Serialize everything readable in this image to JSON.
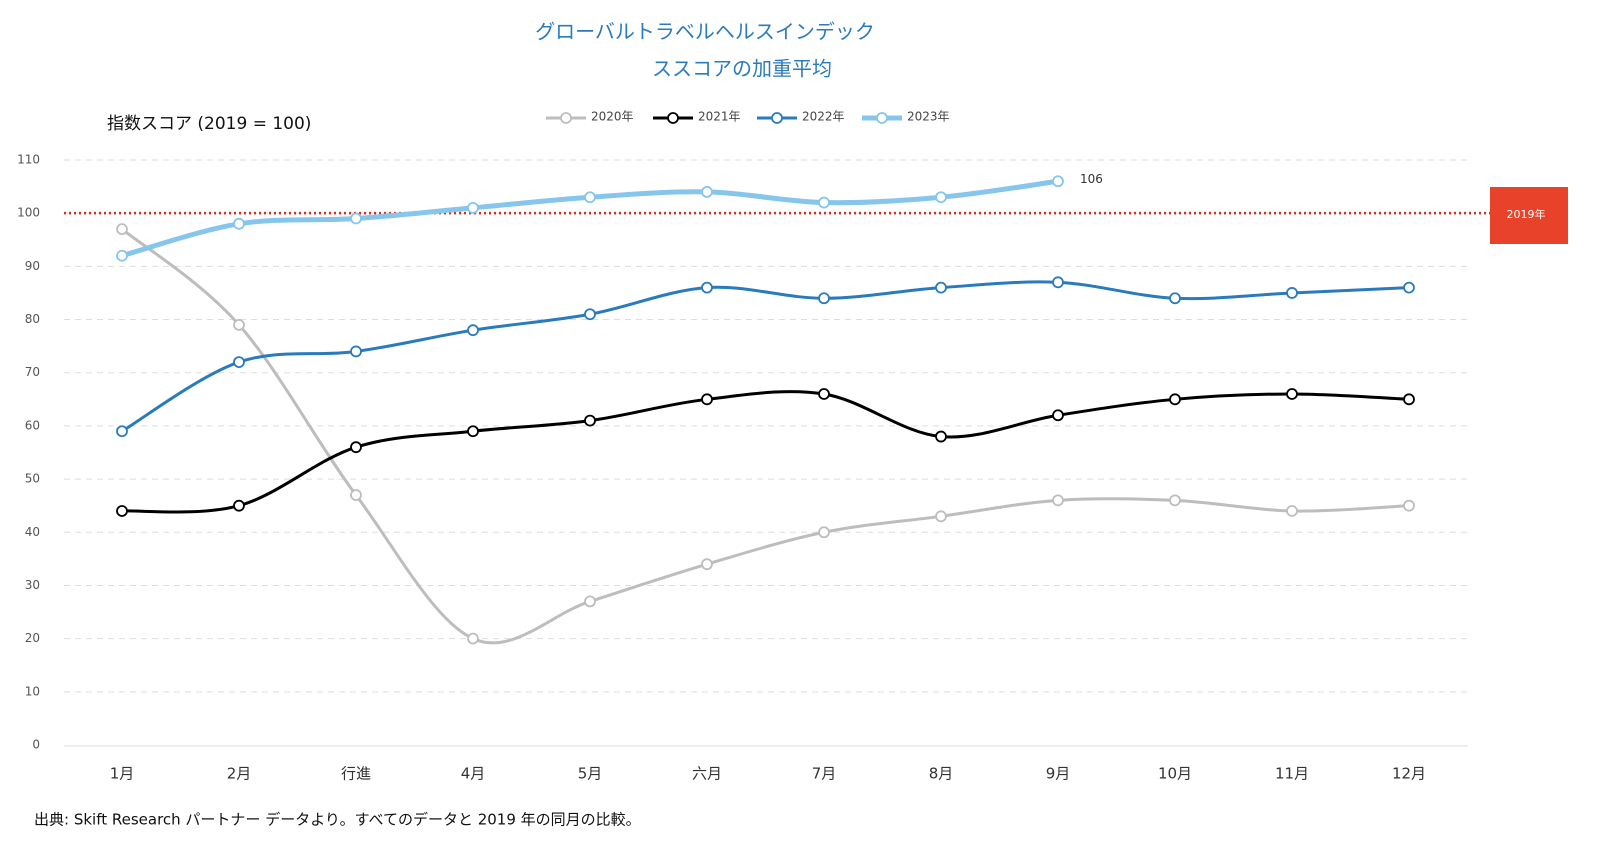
{
  "chart_data": {
    "type": "line",
    "title": [
      "グローバルトラベルヘルスインデック",
      "ススコアの加重平均"
    ],
    "y_label": "指数スコア (2019 = 100)",
    "source": "出典: Skift Research パートナー データより。すべてのデータと 2019 年の同月の比較。",
    "categories": [
      "1月",
      "2月",
      "行進",
      "4月",
      "5月",
      "六月",
      "7月",
      "8月",
      "9月",
      "10月",
      "11月",
      "12月"
    ],
    "series": [
      {
        "name": "2020年",
        "color": "#bdbdbd",
        "values": [
          97,
          79,
          47,
          20,
          27,
          34,
          40,
          43,
          46,
          46,
          44,
          45
        ]
      },
      {
        "name": "2021年",
        "color": "#000000",
        "values": [
          44,
          45,
          56,
          59,
          61,
          65,
          66,
          58,
          62,
          65,
          66,
          65
        ]
      },
      {
        "name": "2022年",
        "color": "#2a7bbd",
        "values": [
          59,
          72,
          74,
          78,
          81,
          86,
          84,
          86,
          87,
          84,
          85,
          86
        ]
      },
      {
        "name": "2023年",
        "color": "#86c5ec",
        "values": [
          92,
          98,
          99,
          101,
          103,
          104,
          102,
          103,
          106,
          null,
          null,
          null
        ]
      }
    ],
    "reference_line": {
      "value": 100,
      "label": "2019年",
      "color": "#d62b1f"
    },
    "ylim": [
      0,
      110
    ],
    "yticks": [
      0,
      10,
      20,
      30,
      40,
      50,
      60,
      70,
      80,
      90,
      100,
      110
    ],
    "grid": true
  }
}
